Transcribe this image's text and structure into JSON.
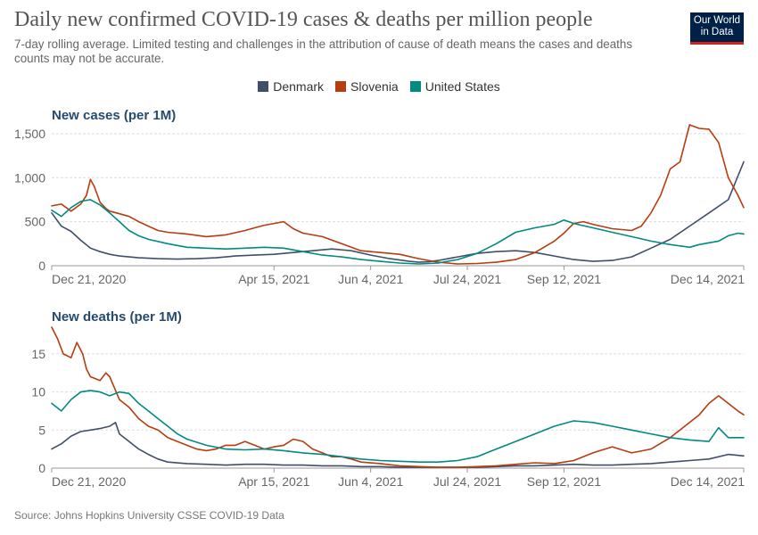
{
  "title": "Daily new confirmed COVID-19 cases & deaths per million people",
  "subtitle": "7-day rolling average. Limited testing and challenges in the attribution of cause of death means the cases and deaths counts may not be accurate.",
  "logo": {
    "line1": "Our World",
    "line2": "in Data",
    "color": "#002147",
    "accent": "#ce261e"
  },
  "legend": [
    {
      "name": "Denmark",
      "color": "#404f68"
    },
    {
      "name": "Slovenia",
      "color": "#b73c10"
    },
    {
      "name": "United States",
      "color": "#008a80"
    }
  ],
  "source": "Source: Johns Hopkins University CSSE COVID-19 Data",
  "chart_data": [
    {
      "type": "line",
      "title": "New cases (per 1M)",
      "xlabel": "",
      "ylabel": "New cases (per 1M)",
      "x_ticks": [
        "Dec 21, 2020",
        "Apr 15, 2021",
        "Jun 4, 2021",
        "Jul 24, 2021",
        "Sep 12, 2021",
        "Dec 14, 2021"
      ],
      "x_tick_days": [
        0,
        115,
        165,
        215,
        265,
        358
      ],
      "xlim": [
        0,
        358
      ],
      "y_ticks": [
        0,
        500,
        1000,
        1500
      ],
      "y_tick_labels": [
        "0",
        "500",
        "1,000",
        "1,500"
      ],
      "ylim": [
        0,
        1600
      ],
      "series": [
        {
          "name": "Denmark",
          "color": "#404f68",
          "x": [
            0,
            5,
            10,
            15,
            20,
            25,
            30,
            35,
            40,
            45,
            55,
            65,
            75,
            85,
            95,
            105,
            115,
            125,
            135,
            145,
            155,
            165,
            175,
            185,
            190,
            195,
            200,
            210,
            220,
            230,
            240,
            250,
            260,
            270,
            280,
            290,
            300,
            310,
            320,
            330,
            340,
            350,
            358
          ],
          "values": [
            600,
            450,
            390,
            290,
            200,
            160,
            130,
            110,
            100,
            90,
            80,
            75,
            80,
            90,
            110,
            120,
            130,
            150,
            170,
            190,
            170,
            120,
            80,
            50,
            40,
            45,
            60,
            100,
            140,
            160,
            170,
            150,
            110,
            70,
            50,
            60,
            100,
            200,
            300,
            450,
            600,
            750,
            1180
          ]
        },
        {
          "name": "Slovenia",
          "color": "#b73c10",
          "x": [
            0,
            5,
            10,
            15,
            18,
            20,
            22,
            25,
            28,
            30,
            35,
            40,
            45,
            50,
            55,
            60,
            70,
            80,
            90,
            100,
            105,
            110,
            115,
            120,
            125,
            130,
            140,
            150,
            160,
            170,
            180,
            190,
            200,
            210,
            220,
            230,
            240,
            250,
            260,
            265,
            270,
            275,
            280,
            290,
            300,
            305,
            310,
            315,
            320,
            325,
            330,
            335,
            340,
            345,
            350,
            355,
            358
          ],
          "values": [
            680,
            700,
            620,
            700,
            800,
            980,
            900,
            720,
            650,
            620,
            590,
            560,
            500,
            450,
            400,
            380,
            360,
            330,
            350,
            400,
            430,
            460,
            480,
            500,
            420,
            370,
            330,
            250,
            170,
            150,
            130,
            80,
            40,
            20,
            25,
            40,
            70,
            150,
            280,
            370,
            480,
            500,
            470,
            420,
            400,
            450,
            600,
            800,
            1100,
            1180,
            1600,
            1560,
            1550,
            1400,
            1000,
            800,
            660
          ]
        },
        {
          "name": "United States",
          "color": "#008a80",
          "x": [
            0,
            5,
            10,
            15,
            20,
            25,
            30,
            35,
            40,
            45,
            50,
            60,
            70,
            80,
            90,
            100,
            110,
            120,
            130,
            140,
            150,
            160,
            170,
            180,
            190,
            200,
            210,
            220,
            230,
            240,
            250,
            260,
            265,
            270,
            280,
            290,
            300,
            310,
            320,
            330,
            335,
            340,
            345,
            350,
            355,
            358
          ],
          "values": [
            630,
            560,
            660,
            730,
            750,
            690,
            600,
            500,
            400,
            340,
            300,
            250,
            210,
            200,
            190,
            200,
            210,
            200,
            160,
            120,
            100,
            70,
            50,
            30,
            20,
            30,
            70,
            140,
            250,
            380,
            430,
            470,
            520,
            480,
            430,
            380,
            330,
            280,
            240,
            210,
            240,
            260,
            280,
            340,
            370,
            360
          ]
        }
      ]
    },
    {
      "type": "line",
      "title": "New deaths (per 1M)",
      "xlabel": "",
      "ylabel": "New deaths (per 1M)",
      "x_ticks": [
        "Dec 21, 2020",
        "Apr 15, 2021",
        "Jun 4, 2021",
        "Jul 24, 2021",
        "Sep 12, 2021",
        "Dec 14, 2021"
      ],
      "x_tick_days": [
        0,
        115,
        165,
        215,
        265,
        358
      ],
      "xlim": [
        0,
        358
      ],
      "y_ticks": [
        0,
        5,
        10,
        15
      ],
      "y_tick_labels": [
        "0",
        "5",
        "10",
        "15"
      ],
      "ylim": [
        0,
        18.5
      ],
      "series": [
        {
          "name": "Denmark",
          "color": "#404f68",
          "x": [
            0,
            5,
            10,
            15,
            20,
            25,
            30,
            33,
            35,
            40,
            45,
            50,
            55,
            60,
            70,
            80,
            90,
            100,
            110,
            120,
            130,
            140,
            150,
            160,
            170,
            180,
            190,
            200,
            210,
            220,
            230,
            240,
            250,
            260,
            270,
            280,
            290,
            300,
            310,
            320,
            330,
            340,
            350,
            358
          ],
          "values": [
            2.5,
            3.2,
            4.2,
            4.8,
            5.0,
            5.2,
            5.5,
            6.0,
            4.5,
            3.5,
            2.5,
            1.8,
            1.2,
            0.8,
            0.6,
            0.5,
            0.4,
            0.5,
            0.5,
            0.4,
            0.4,
            0.3,
            0.3,
            0.2,
            0.2,
            0.1,
            0.1,
            0.1,
            0.1,
            0.1,
            0.2,
            0.3,
            0.3,
            0.4,
            0.5,
            0.4,
            0.4,
            0.5,
            0.6,
            0.8,
            1.0,
            1.2,
            1.8,
            1.6
          ]
        },
        {
          "name": "Slovenia",
          "color": "#b73c10",
          "x": [
            0,
            3,
            6,
            10,
            13,
            16,
            18,
            20,
            25,
            28,
            30,
            35,
            40,
            45,
            50,
            55,
            60,
            65,
            70,
            75,
            80,
            85,
            90,
            95,
            100,
            105,
            110,
            115,
            120,
            125,
            130,
            135,
            140,
            145,
            150,
            155,
            160,
            170,
            180,
            190,
            200,
            210,
            220,
            230,
            240,
            250,
            260,
            270,
            280,
            290,
            300,
            310,
            320,
            325,
            330,
            335,
            340,
            345,
            350,
            355,
            358
          ],
          "values": [
            18.5,
            17.0,
            15.0,
            14.5,
            16.5,
            15.0,
            13.0,
            12.0,
            11.5,
            12.5,
            12.0,
            9.0,
            8.0,
            6.5,
            5.5,
            5.0,
            4.0,
            3.5,
            3.0,
            2.5,
            2.3,
            2.5,
            3.0,
            3.0,
            3.5,
            3.0,
            2.5,
            2.8,
            3.0,
            3.8,
            3.5,
            2.5,
            2.0,
            1.5,
            1.5,
            1.2,
            0.8,
            0.6,
            0.3,
            0.2,
            0.1,
            0.1,
            0.2,
            0.3,
            0.5,
            0.7,
            0.6,
            1.0,
            2.0,
            2.8,
            2.0,
            2.5,
            4.0,
            5.0,
            6.0,
            7.0,
            8.5,
            9.5,
            8.5,
            7.5,
            7.0
          ]
        },
        {
          "name": "United States",
          "color": "#008a80",
          "x": [
            0,
            5,
            10,
            15,
            20,
            25,
            30,
            35,
            40,
            45,
            50,
            55,
            60,
            65,
            70,
            80,
            90,
            100,
            110,
            120,
            130,
            140,
            150,
            160,
            170,
            180,
            190,
            200,
            210,
            220,
            230,
            240,
            250,
            260,
            270,
            280,
            290,
            300,
            310,
            320,
            330,
            340,
            345,
            350,
            355,
            358
          ],
          "values": [
            8.5,
            7.5,
            9.0,
            10.0,
            10.2,
            10.0,
            9.5,
            10.0,
            9.8,
            8.5,
            7.5,
            6.5,
            5.5,
            4.5,
            3.8,
            3.0,
            2.5,
            2.4,
            2.5,
            2.3,
            2.0,
            1.8,
            1.5,
            1.2,
            1.0,
            0.9,
            0.8,
            0.8,
            1.0,
            1.5,
            2.5,
            3.5,
            4.5,
            5.5,
            6.2,
            6.0,
            5.5,
            5.0,
            4.5,
            4.0,
            3.7,
            3.5,
            5.3,
            4.0,
            4.0,
            4.0
          ]
        }
      ]
    }
  ]
}
